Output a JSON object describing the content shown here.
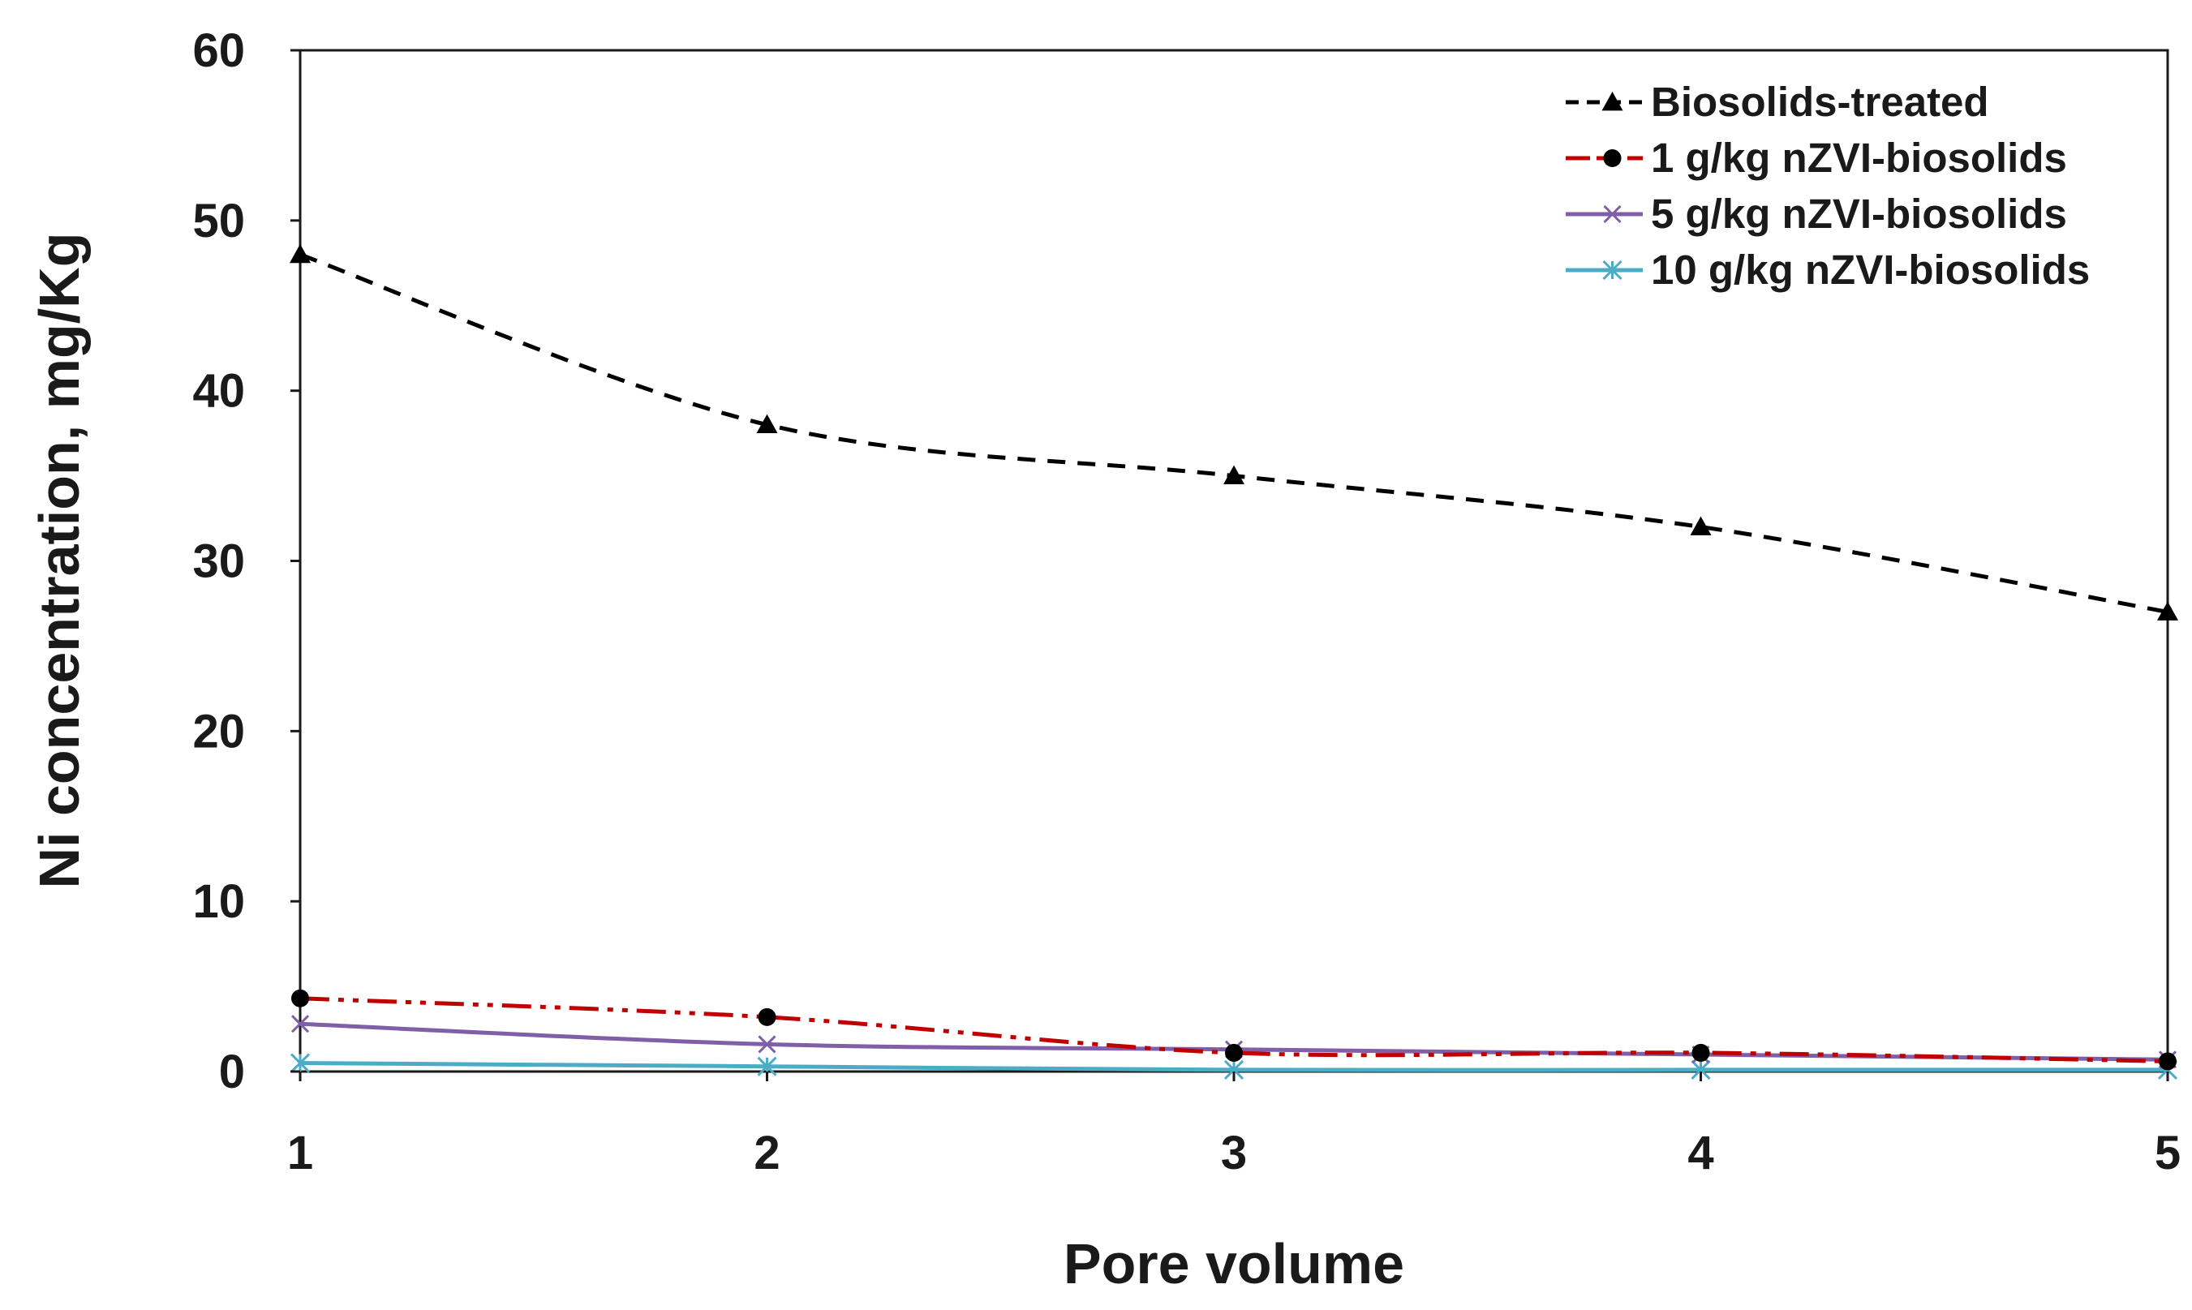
{
  "chart_data": {
    "type": "line",
    "title": "",
    "xlabel": "Pore volume",
    "ylabel": "Ni concentration, mg/Kg",
    "x": [
      1,
      2,
      3,
      4,
      5
    ],
    "x_ticks": [
      "1",
      "2",
      "3",
      "4",
      "5"
    ],
    "xlim": [
      1,
      5
    ],
    "ylim": [
      0,
      60
    ],
    "y_ticks": [
      "0",
      "10",
      "20",
      "30",
      "40",
      "50",
      "60"
    ],
    "grid": false,
    "legend_position": "top-right",
    "series": [
      {
        "name": "Biosolids-treated",
        "values": [
          48,
          38,
          35,
          32,
          27
        ],
        "color": "#000000",
        "line_style": "dashed",
        "marker": "triangle"
      },
      {
        "name": "1 g/kg nZVI-biosolids",
        "values": [
          4.3,
          3.2,
          1.1,
          1.1,
          0.6
        ],
        "color": "#c00000",
        "line_style": "dash-dot-dot",
        "marker": "circle"
      },
      {
        "name": "5 g/kg nZVI-biosolids",
        "values": [
          2.8,
          1.6,
          1.3,
          1.0,
          0.7
        ],
        "color": "#7e5fa8",
        "line_style": "solid",
        "marker": "x"
      },
      {
        "name": "10 g/kg nZVI-biosolids",
        "values": [
          0.5,
          0.3,
          0.1,
          0.1,
          0.1
        ],
        "color": "#4bacc6",
        "line_style": "solid",
        "marker": "star"
      }
    ]
  }
}
